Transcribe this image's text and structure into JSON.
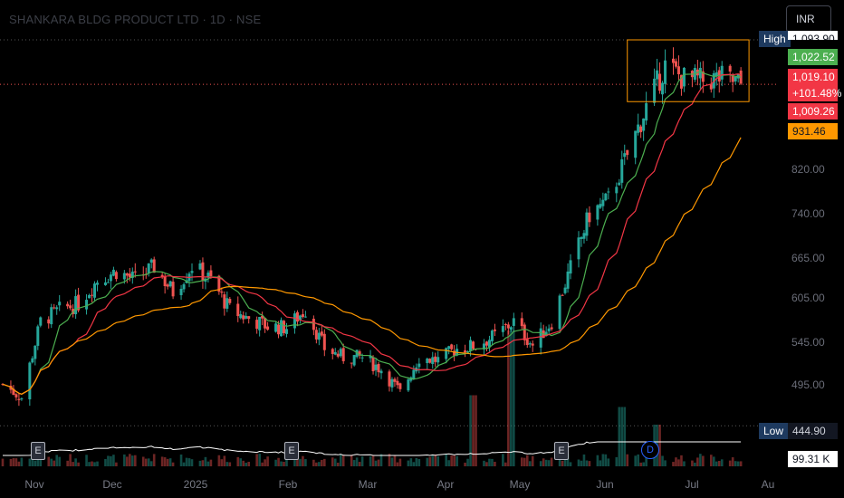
{
  "title": "SHANKARA BLDG PRODUCT LTD · 1D · NSE",
  "currency": "INR",
  "y_ticks": [
    "820.00",
    "740.00",
    "665.00",
    "605.00",
    "545.00",
    "495.00"
  ],
  "x_ticks": [
    "Nov",
    "Dec",
    "2025",
    "Feb",
    "Mar",
    "Apr",
    "May",
    "Jun",
    "Jul",
    "Au"
  ],
  "badges": {
    "high_label": "High",
    "high_value": "1,093.90",
    "sma_fast": "1,022.52",
    "last_price": "1,019.10",
    "change_pct": "+101.48%",
    "sma_mid": "1,009.26",
    "sma_slow": "931.46",
    "low_label": "Low",
    "low_value": "444.90",
    "volume": "99.31 K"
  },
  "event_markers": [
    "E",
    "E",
    "E",
    "D"
  ],
  "colors": {
    "up": "#26a69a",
    "down": "#ef5350",
    "ma_fast": "#4caf50",
    "ma_mid": "#f23645",
    "ma_slow": "#ff9800",
    "box": "#ff9800",
    "volume_ma": "#ffffff",
    "high_badge": "#1e3a5f",
    "low_badge": "#1e3a5f"
  },
  "chart_data": {
    "type": "candlestick",
    "ylim": [
      430,
      1100
    ],
    "x_range": [
      "2024-10-24",
      "2025-08-04"
    ],
    "close_series": [
      [
        "2024-10-25",
        515
      ],
      [
        "2024-11-01",
        492
      ],
      [
        "2024-11-08",
        620
      ],
      [
        "2024-11-15",
        640
      ],
      [
        "2024-11-22",
        650
      ],
      [
        "2024-11-29",
        690
      ],
      [
        "2024-12-06",
        705
      ],
      [
        "2024-12-13",
        690
      ],
      [
        "2024-12-20",
        712
      ],
      [
        "2024-12-27",
        670
      ],
      [
        "2025-01-03",
        714
      ],
      [
        "2025-01-10",
        690
      ],
      [
        "2025-01-17",
        640
      ],
      [
        "2025-01-24",
        625
      ],
      [
        "2025-01-31",
        612
      ],
      [
        "2025-02-07",
        610
      ],
      [
        "2025-02-14",
        640
      ],
      [
        "2025-02-21",
        575
      ],
      [
        "2025-02-28",
        560
      ],
      [
        "2025-03-07",
        560
      ],
      [
        "2025-03-14",
        540
      ],
      [
        "2025-03-21",
        500
      ],
      [
        "2025-03-28",
        560
      ],
      [
        "2025-04-04",
        555
      ],
      [
        "2025-04-11",
        575
      ],
      [
        "2025-04-18",
        580
      ],
      [
        "2025-04-25",
        596
      ],
      [
        "2025-05-02",
        620
      ],
      [
        "2025-05-09",
        580
      ],
      [
        "2025-05-16",
        620
      ],
      [
        "2025-05-23",
        710
      ],
      [
        "2025-05-30",
        800
      ],
      [
        "2025-06-06",
        825
      ],
      [
        "2025-06-13",
        900
      ],
      [
        "2025-06-20",
        980
      ],
      [
        "2025-06-27",
        1050
      ],
      [
        "2025-07-04",
        1028
      ],
      [
        "2025-07-11",
        1025
      ],
      [
        "2025-07-18",
        1030
      ],
      [
        "2025-07-25",
        1019.1
      ]
    ],
    "moving_averages": [
      {
        "name": "fast",
        "last": 1022.52
      },
      {
        "name": "mid",
        "last": 1009.26
      },
      {
        "name": "slow",
        "last": 931.46
      }
    ],
    "consolidation_box": {
      "from": "2025-06-13",
      "to": "2025-07-28",
      "low": 990,
      "high": 1093.9
    },
    "high": 1093.9,
    "low": 444.9,
    "last": 1019.1,
    "change_pct": 101.48,
    "volume_last": "99.31 K",
    "volume_spikes": [
      {
        "date": "2025-05-01",
        "rel": 1.0
      },
      {
        "date": "2025-04-17",
        "rel": 0.45
      },
      {
        "date": "2025-06-11",
        "rel": 0.35
      },
      {
        "date": "2025-06-24",
        "rel": 0.2
      }
    ]
  }
}
